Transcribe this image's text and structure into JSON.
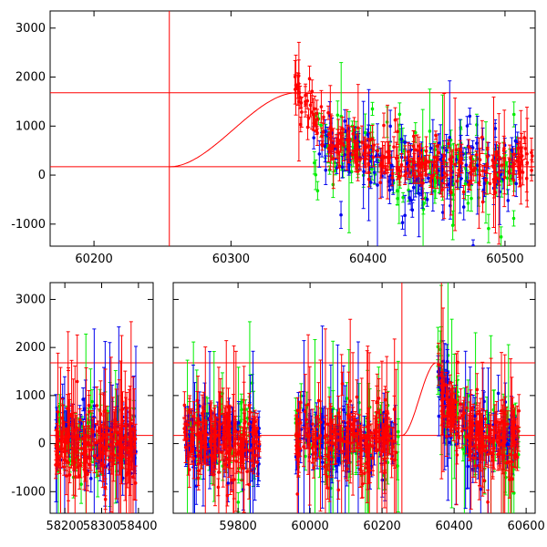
{
  "colors": {
    "red": "#ff0000",
    "green": "#00ee00",
    "blue": "#0000ee",
    "frame": "#000000",
    "background": "#ffffff"
  },
  "chart_data": [
    {
      "type": "scatter",
      "title": "",
      "xlabel": "",
      "ylabel": "",
      "xlim": [
        60168,
        60522
      ],
      "ylim": [
        -1450,
        3350
      ],
      "x_ticks": [
        60200,
        60300,
        60400,
        60500
      ],
      "y_ticks": [
        -1000,
        0,
        1000,
        2000,
        3000
      ],
      "grid": false,
      "error_bars": true,
      "reference_lines": {
        "horizontal_y": [
          170,
          1680
        ],
        "vertical_x": [
          60255
        ]
      },
      "model_curve": {
        "description": "smooth rise from baseline to peak, then decline",
        "baseline": 170,
        "peak": 1680,
        "start_x": 60255,
        "peak_x": 60348
      },
      "series": [
        {
          "color": "red",
          "x": [
            60345,
            60350,
            60355,
            60360,
            60365,
            60370,
            60380,
            60390,
            60400,
            60410,
            60420,
            60430,
            60440,
            60450,
            60460,
            60470,
            60480,
            60490,
            60500,
            60510,
            60520
          ],
          "y": [
            2300,
            1600,
            1500,
            1300,
            1100,
            900,
            700,
            550,
            450,
            350,
            300,
            250,
            200,
            150,
            150,
            150,
            120,
            150,
            200,
            250,
            200
          ]
        },
        {
          "color": "green",
          "x": [
            60360,
            60370,
            60380,
            60390,
            60400,
            60410,
            60420,
            60430,
            60440,
            60450,
            60460,
            60470,
            60480,
            60490,
            60500,
            60510
          ],
          "y": [
            800,
            600,
            500,
            400,
            350,
            250,
            200,
            150,
            100,
            100,
            50,
            50,
            100,
            50,
            100,
            150
          ]
        },
        {
          "color": "blue",
          "x": [
            60360,
            60370,
            60380,
            60390,
            60400,
            60410,
            60420,
            60430,
            60440,
            60450,
            60460,
            60470,
            60480,
            60490,
            60500,
            60510
          ],
          "y": [
            900,
            700,
            600,
            450,
            400,
            300,
            250,
            200,
            150,
            120,
            100,
            100,
            120,
            100,
            150,
            150
          ]
        }
      ]
    },
    {
      "type": "scatter",
      "title": "",
      "xlabel": "",
      "ylabel": "",
      "broken_x_axis": true,
      "segments": [
        {
          "xlim": [
            58160,
            58440
          ],
          "x_ticks": [
            58200,
            58300,
            58400
          ]
        },
        {
          "xlim": [
            59620,
            60625
          ],
          "x_ticks": [
            59800,
            60000,
            60200,
            60400,
            60600
          ]
        }
      ],
      "ylim": [
        -1450,
        3350
      ],
      "y_ticks": [
        -1000,
        0,
        1000,
        2000,
        3000
      ],
      "grid": false,
      "error_bars": true,
      "reference_lines": {
        "horizontal_y": [
          170,
          1680
        ],
        "vertical_x": [
          60255
        ]
      },
      "model_curve": {
        "description": "smooth rise from baseline to peak, then decline",
        "baseline": 170,
        "peak": 1680,
        "start_x": 60255,
        "peak_x": 60350
      },
      "clusters": [
        {
          "x_range": [
            58175,
            58395
          ],
          "mean": 80,
          "spread": 450
        },
        {
          "x_range": [
            59650,
            59860
          ],
          "mean": 80,
          "spread": 450
        },
        {
          "x_range": [
            59960,
            60245
          ],
          "mean": 80,
          "spread": 450
        },
        {
          "x_range": [
            60355,
            60580
          ],
          "mean": 150,
          "spread": 450
        }
      ]
    }
  ]
}
